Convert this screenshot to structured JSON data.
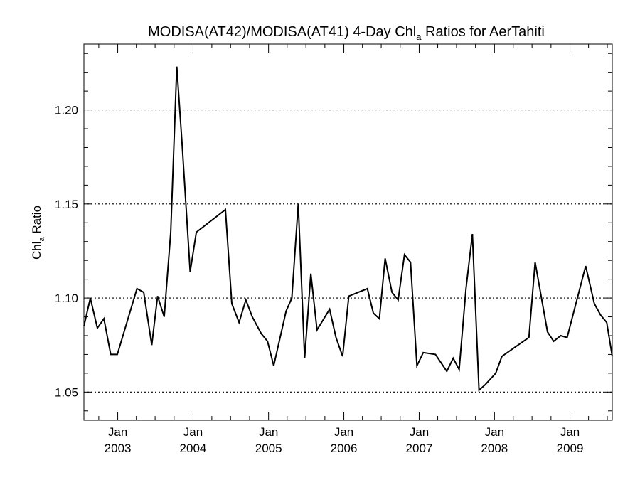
{
  "chart_data": {
    "type": "line",
    "title": {
      "pre": "MODISA(AT42)/MODISA(AT41) 4-Day Chl",
      "sub": "a",
      "post": " Ratios for AerTahiti"
    },
    "ylabel": {
      "pre": "Chl",
      "sub": "a",
      "post": " Ratio"
    },
    "xlabel": "",
    "xlim": [
      "2002-07-21",
      "2009-07-25"
    ],
    "ylim": [
      1.035,
      1.235
    ],
    "yticks": [
      {
        "value": 1.05,
        "label": "1.05"
      },
      {
        "value": 1.1,
        "label": "1.10"
      },
      {
        "value": 1.15,
        "label": "1.15"
      },
      {
        "value": 1.2,
        "label": "1.20"
      }
    ],
    "xticks": [
      {
        "date": "2003-01-01",
        "month": "Jan",
        "year": "2003"
      },
      {
        "date": "2004-01-01",
        "month": "Jan",
        "year": "2004"
      },
      {
        "date": "2005-01-01",
        "month": "Jan",
        "year": "2005"
      },
      {
        "date": "2006-01-01",
        "month": "Jan",
        "year": "2006"
      },
      {
        "date": "2007-01-01",
        "month": "Jan",
        "year": "2007"
      },
      {
        "date": "2008-01-01",
        "month": "Jan",
        "year": "2008"
      },
      {
        "date": "2009-01-01",
        "month": "Jan",
        "year": "2009"
      }
    ],
    "grid": {
      "horizontal": true,
      "style": "dotted"
    },
    "series": [
      {
        "x": [
          "2002-07-21",
          "2002-08-21",
          "2002-09-24",
          "2002-10-26",
          "2002-11-28",
          "2002-12-30",
          "2003-04-04",
          "2003-05-07",
          "2003-06-15",
          "2003-07-13",
          "2003-08-14",
          "2003-09-15",
          "2003-10-14",
          "2003-11-10",
          "2003-12-18",
          "2004-01-17",
          "2004-06-06",
          "2004-07-07",
          "2004-08-11",
          "2004-09-13",
          "2004-10-14",
          "2004-11-27",
          "2004-12-27",
          "2005-01-26",
          "2005-03-27",
          "2005-04-24",
          "2005-05-25",
          "2005-06-25",
          "2005-07-25",
          "2005-08-24",
          "2005-10-24",
          "2005-11-24",
          "2005-12-26",
          "2006-01-25",
          "2006-04-25",
          "2006-05-24",
          "2006-06-22",
          "2006-07-20",
          "2006-08-22",
          "2006-09-21",
          "2006-10-22",
          "2006-11-20",
          "2006-12-21",
          "2007-01-21",
          "2007-03-21",
          "2007-05-15",
          "2007-06-15",
          "2007-07-14",
          "2007-08-16",
          "2007-09-16",
          "2007-10-18",
          "2007-11-18",
          "2008-01-07",
          "2008-02-06",
          "2008-06-16",
          "2008-07-16",
          "2008-09-14",
          "2008-10-14",
          "2008-11-17",
          "2008-12-18",
          "2009-03-18",
          "2009-04-29",
          "2009-05-29",
          "2009-06-28",
          "2009-07-25"
        ],
        "y": [
          1.085,
          1.1,
          1.084,
          1.089,
          1.07,
          1.07,
          1.105,
          1.103,
          1.075,
          1.101,
          1.09,
          1.135,
          1.223,
          1.18,
          1.114,
          1.135,
          1.147,
          1.097,
          1.087,
          1.099,
          1.09,
          1.081,
          1.077,
          1.064,
          1.093,
          1.1,
          1.15,
          1.068,
          1.113,
          1.083,
          1.094,
          1.079,
          1.069,
          1.101,
          1.105,
          1.092,
          1.089,
          1.121,
          1.103,
          1.099,
          1.123,
          1.119,
          1.064,
          1.071,
          1.07,
          1.061,
          1.068,
          1.062,
          1.105,
          1.134,
          1.051,
          1.054,
          1.06,
          1.069,
          1.079,
          1.119,
          1.082,
          1.077,
          1.08,
          1.079,
          1.117,
          1.097,
          1.091,
          1.087,
          1.069
        ]
      }
    ]
  }
}
